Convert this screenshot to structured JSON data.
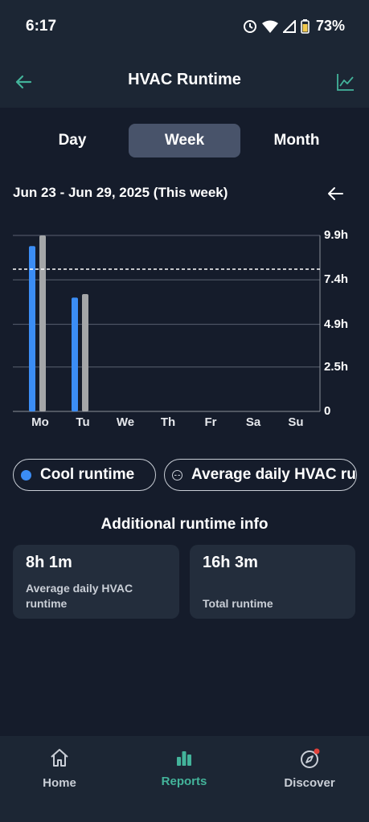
{
  "status_bar": {
    "time": "6:17",
    "battery": "73%"
  },
  "header": {
    "title": "HVAC Runtime"
  },
  "tabs": [
    {
      "label": "Day",
      "selected": false
    },
    {
      "label": "Week",
      "selected": true
    },
    {
      "label": "Month",
      "selected": false
    }
  ],
  "date_range": "Jun 23 - Jun 29, 2025 (This week)",
  "chart_data": {
    "type": "bar",
    "categories": [
      "Mo",
      "Tu",
      "We",
      "Th",
      "Fr",
      "Sa",
      "Su"
    ],
    "series": [
      {
        "name": "Cool runtime",
        "color": "#3b8df5",
        "values": [
          9.3,
          6.4,
          0,
          0,
          0,
          0,
          0
        ]
      },
      {
        "color": "#a4a6a8",
        "values": [
          9.9,
          6.6,
          0,
          0,
          0,
          0,
          0
        ]
      }
    ],
    "average_line": {
      "name": "Average daily HVAC runtime",
      "value": 8.0
    },
    "y_ticks": [
      "9.9h",
      "7.4h",
      "4.9h",
      "2.5h",
      "0"
    ],
    "y_tick_values": [
      9.9,
      7.4,
      4.9,
      2.5,
      0
    ],
    "ylim": [
      0,
      9.9
    ],
    "grid": true
  },
  "legend": {
    "cool": "Cool runtime",
    "average": "Average daily HVAC runtime"
  },
  "section_title": "Additional runtime info",
  "cards": [
    {
      "value": "8h 1m",
      "label": "Average daily HVAC runtime"
    },
    {
      "value": "16h 3m",
      "label": "Total runtime"
    }
  ],
  "nav": [
    {
      "label": "Home",
      "icon": "home-icon",
      "active": false
    },
    {
      "label": "Reports",
      "icon": "bar-chart-icon",
      "active": true
    },
    {
      "label": "Discover",
      "icon": "compass-icon",
      "active": false
    }
  ],
  "colors": {
    "accent": "#43b39a",
    "background": "#151c2b",
    "surface": "#1c2634",
    "bar_primary": "#3b8df5",
    "bar_secondary": "#a4a6a8"
  }
}
